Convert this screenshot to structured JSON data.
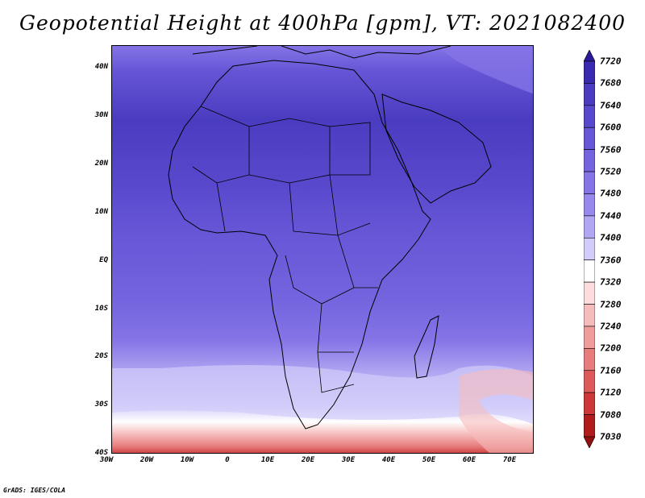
{
  "title": "Geopotential Height at 400hPa [gpm], VT: 2021082400",
  "credit": "GrADS: IGES/COLA",
  "lat_labels": [
    "40N",
    "30N",
    "20N",
    "10N",
    "EQ",
    "10S",
    "20S",
    "30S",
    "40S"
  ],
  "lon_labels": [
    "30W",
    "20W",
    "10W",
    "0",
    "10E",
    "20E",
    "30E",
    "40E",
    "50E",
    "60E",
    "70E"
  ],
  "colorbar": {
    "levels": [
      "7720",
      "7680",
      "7640",
      "7600",
      "7560",
      "7520",
      "7480",
      "7440",
      "7400",
      "7360",
      "7320",
      "7280",
      "7240",
      "7200",
      "7160",
      "7120",
      "7080",
      "7030"
    ],
    "colors": [
      "#2a1a9a",
      "#3a2ab0",
      "#4a3cc0",
      "#5848cc",
      "#6656d6",
      "#7464de",
      "#8474e6",
      "#9688ec",
      "#b0a6f2",
      "#d2ccfa",
      "#ffffff",
      "#fcdcdc",
      "#f6bcbc",
      "#ee9c9c",
      "#e67c7c",
      "#dc5a5a",
      "#cc3838",
      "#b01c1c",
      "#901010"
    ]
  }
}
